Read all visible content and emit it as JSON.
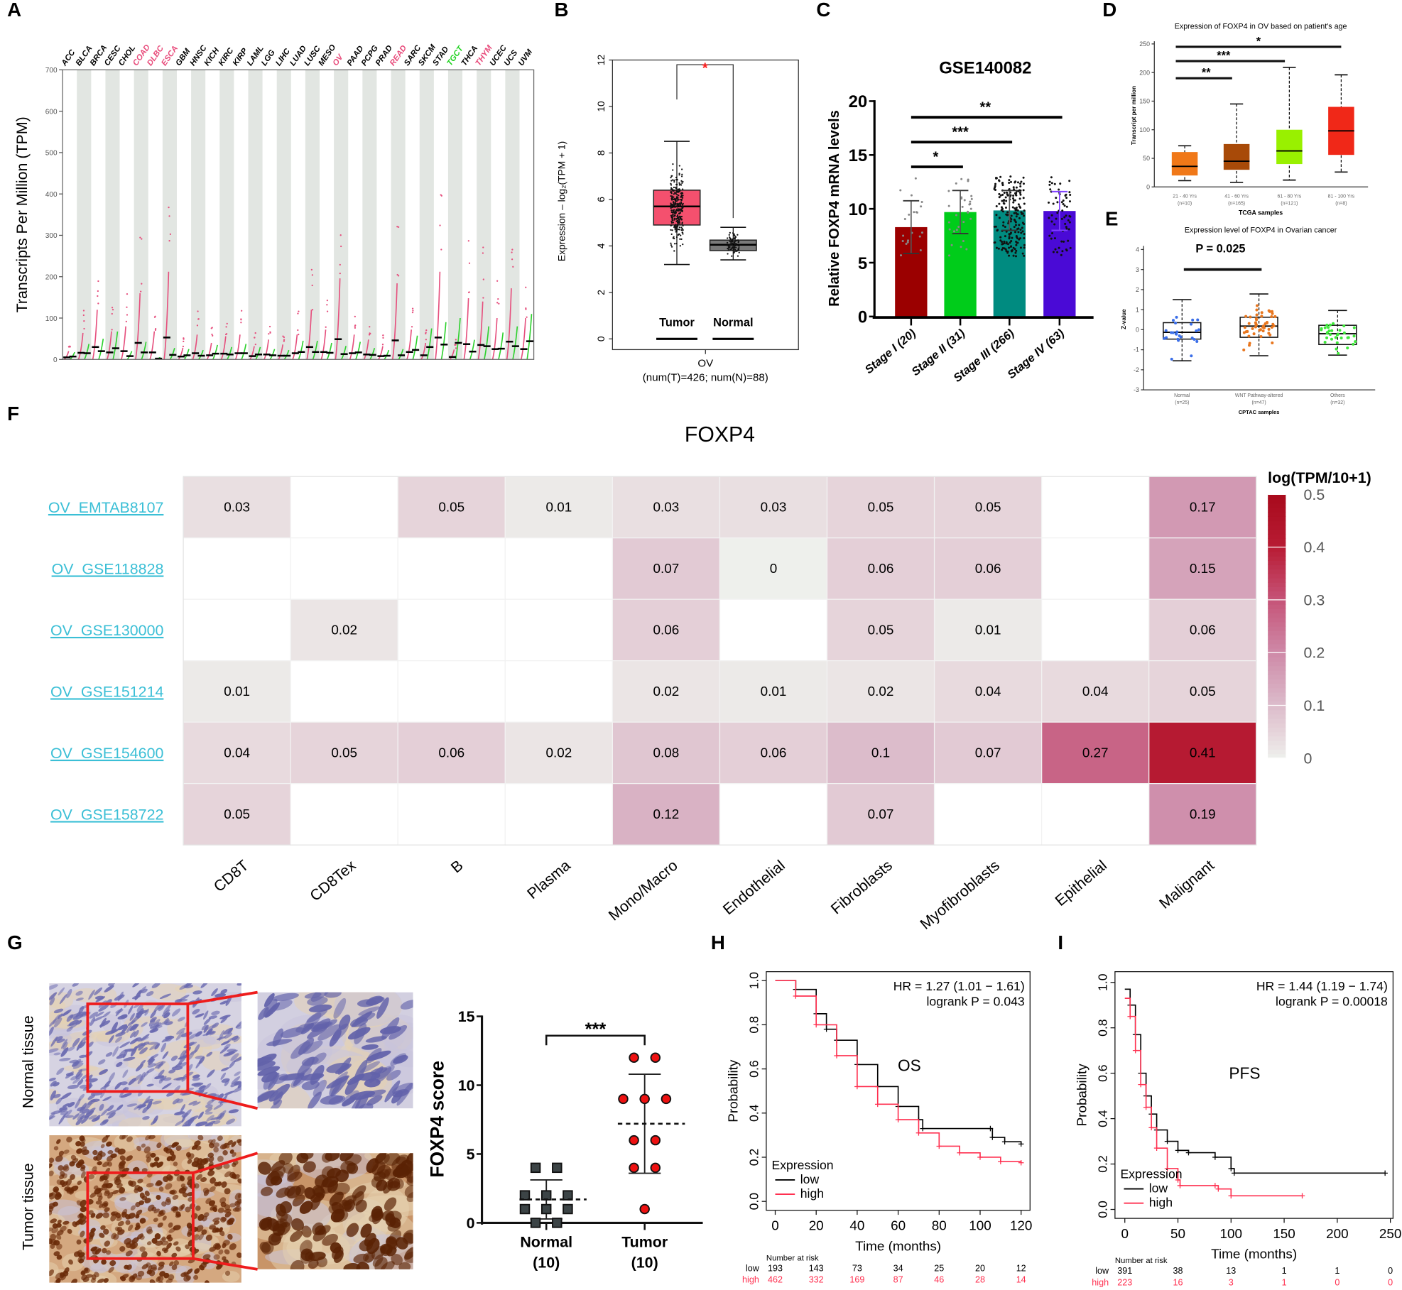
{
  "panel_labels": [
    "A",
    "B",
    "C",
    "D",
    "E",
    "F",
    "G",
    "H",
    "I"
  ],
  "chart_data": [
    {
      "panel": "A",
      "type": "scatter",
      "ylabel": "Transcripts Per Million (TPM)",
      "ylim": [
        0,
        700
      ],
      "yticks": [
        0,
        100,
        200,
        300,
        400,
        500,
        600,
        700
      ],
      "categories": [
        "ACC",
        "BLCA",
        "BRCA",
        "CESC",
        "CHOL",
        "COAD",
        "DLBC",
        "ESCA",
        "GBM",
        "HNSC",
        "KICH",
        "KIRC",
        "KIRP",
        "LAML",
        "LGG",
        "LIHC",
        "LUAD",
        "LUSC",
        "MESO",
        "OV",
        "PAAD",
        "PCPG",
        "PRAD",
        "READ",
        "SARC",
        "SKCM",
        "STAD",
        "TGCT",
        "THCA",
        "THYM",
        "UCEC",
        "UCS",
        "UVM"
      ],
      "label_colors": [
        "#000000",
        "#000000",
        "#000000",
        "#000000",
        "#000000",
        "#e84a7a",
        "#e84a7a",
        "#e84a7a",
        "#000000",
        "#000000",
        "#000000",
        "#000000",
        "#000000",
        "#000000",
        "#000000",
        "#000000",
        "#000000",
        "#000000",
        "#000000",
        "#e84a7a",
        "#000000",
        "#000000",
        "#000000",
        "#e84a7a",
        "#000000",
        "#000000",
        "#000000",
        "#1ed21e",
        "#000000",
        "#e84a7a",
        "#000000",
        "#000000",
        "#000000"
      ],
      "tumor_medians": [
        5,
        16,
        30,
        17,
        20,
        40,
        17,
        53,
        7,
        15,
        10,
        14,
        15,
        8,
        12,
        9,
        15,
        30,
        18,
        49,
        15,
        12,
        8,
        46,
        18,
        10,
        53,
        6,
        37,
        35,
        25,
        43,
        25
      ],
      "normal_medians": [
        7,
        15,
        20,
        27,
        8,
        17,
        2,
        11,
        10,
        9,
        14,
        12,
        15,
        12,
        10,
        9,
        18,
        18,
        16,
        13,
        17,
        11,
        9,
        10,
        23,
        30,
        36,
        40,
        19,
        32,
        26,
        32,
        44
      ],
      "tumor_color": "#e6507e",
      "normal_color": "#2ed12e",
      "grid": false
    },
    {
      "panel": "B",
      "type": "box",
      "ylabel": "Expression – log₂(TPM + 1)",
      "ylim": [
        0,
        12
      ],
      "yticks": [
        0,
        2,
        4,
        6,
        8,
        10,
        12
      ],
      "groups": [
        {
          "label": "Tumor",
          "q1": 4.9,
          "median": 5.7,
          "q3": 6.4,
          "min": 3.2,
          "max": 8.5,
          "color": "#f4506e"
        },
        {
          "label": "Normal",
          "q1": 3.8,
          "median": 4.05,
          "q3": 4.25,
          "min": 3.4,
          "max": 4.8,
          "color": "#7a7a7a"
        }
      ],
      "significance": "*",
      "significance_color": "#ff2020",
      "xlabel": "OV",
      "xsublabel": "(num(T)=426; num(N)=88)"
    },
    {
      "panel": "C",
      "type": "bar",
      "title": "GSE140082",
      "ylabel": "Relative FOXP4 mRNA levels",
      "ylim": [
        0,
        20
      ],
      "yticks": [
        0,
        5,
        10,
        15,
        20
      ],
      "categories": [
        "Stage I (20)",
        "Stage II (31)",
        "Stage III (266)",
        "Stage IV (63)"
      ],
      "values": [
        8.3,
        9.7,
        9.85,
        9.8
      ],
      "sd": [
        2.45,
        2.0,
        1.85,
        1.8
      ],
      "colors": [
        "#9b0000",
        "#00cc1a",
        "#008b80",
        "#4a0ad6"
      ],
      "comparisons": [
        {
          "from": 0,
          "to": 1,
          "label": "*"
        },
        {
          "from": 0,
          "to": 2,
          "label": "***"
        },
        {
          "from": 0,
          "to": 3,
          "label": "**"
        }
      ]
    },
    {
      "panel": "D",
      "type": "box",
      "title": "Expression of FOXP4 in OV based on patient's age",
      "ylabel": "Transcript per million",
      "xlabel": "TCGA samples",
      "ylim": [
        0,
        250
      ],
      "yticks": [
        0,
        50,
        100,
        150,
        200,
        250
      ],
      "groups": [
        {
          "label": "21 - 40 Yrs",
          "n": "(n=10)",
          "q1": 20,
          "median": 36,
          "q3": 61,
          "min": 11,
          "max": 72,
          "color": "#f07818"
        },
        {
          "label": "41 - 60 Yrs",
          "n": "(n=165)",
          "q1": 30,
          "median": 45,
          "q3": 75,
          "min": 8,
          "max": 145,
          "color": "#a84a08"
        },
        {
          "label": "61 - 80 Yrs",
          "n": "(n=121)",
          "q1": 40,
          "median": 63,
          "q3": 100,
          "min": 12,
          "max": 209,
          "color": "#99f000"
        },
        {
          "label": "81 - 100 Yrs",
          "n": "(n=8)",
          "q1": 56,
          "median": 98,
          "q3": 140,
          "min": 26,
          "max": 196,
          "color": "#f02818"
        }
      ],
      "comparisons": [
        {
          "from": 0,
          "to": 1,
          "label": "**"
        },
        {
          "from": 0,
          "to": 2,
          "label": "***"
        },
        {
          "from": 0,
          "to": 3,
          "label": "*"
        }
      ]
    },
    {
      "panel": "E",
      "type": "box",
      "title": "Expression level of FOXP4 in Ovarian cancer",
      "ylabel": "Z-value",
      "xlabel": "CPTAC samples",
      "ylim": [
        -3,
        4
      ],
      "yticks": [
        -3,
        -2,
        -1,
        0,
        1,
        2,
        3,
        4
      ],
      "groups": [
        {
          "label": "Normal",
          "n": "(n=25)",
          "count": 25,
          "q1": -0.47,
          "median": -0.13,
          "q3": 0.35,
          "min": -1.55,
          "max": 1.5,
          "color": "#3a6ee8"
        },
        {
          "label": "WNT Pathway-altered",
          "n": "(n=47)",
          "count": 47,
          "q1": -0.38,
          "median": 0.18,
          "q3": 0.62,
          "min": -1.3,
          "max": 1.78,
          "color": "#e8761e"
        },
        {
          "label": "Others",
          "n": "(n=32)",
          "count": 32,
          "q1": -0.74,
          "median": -0.2,
          "q3": 0.22,
          "min": -1.27,
          "max": 0.96,
          "color": "#3ee83a"
        }
      ],
      "annotation": {
        "label": "P = 0.025",
        "from": 0,
        "to": 1,
        "y": 3
      }
    },
    {
      "panel": "F",
      "type": "heatmap",
      "title": "FOXP4",
      "colorbar_title": "log(TPM/10+1)",
      "colorbar_ticks": [
        0.5,
        0.4,
        0.3,
        0.2,
        0.1,
        0
      ],
      "colorscale": [
        [
          0,
          "#eef0ec"
        ],
        [
          0.05,
          "#e6d4da"
        ],
        [
          0.1,
          "#dcbccb"
        ],
        [
          0.2,
          "#ce8aa8"
        ],
        [
          0.3,
          "#c65478"
        ],
        [
          0.4,
          "#b81c34"
        ],
        [
          0.5,
          "#a80a1c"
        ]
      ],
      "rows": [
        "OV_EMTAB8107",
        "OV_GSE118828",
        "OV_GSE130000",
        "OV_GSE151214",
        "OV_GSE154600",
        "OV_GSE158722"
      ],
      "columns": [
        "CD8T",
        "CD8Tex",
        "B",
        "Plasma",
        "Mono/Macro",
        "Endothelial",
        "Fibroblasts",
        "Myofibroblasts",
        "Epithelial",
        "Malignant"
      ],
      "values": [
        [
          0.03,
          null,
          0.05,
          0.01,
          0.03,
          0.03,
          0.05,
          0.05,
          null,
          0.17
        ],
        [
          null,
          null,
          null,
          null,
          0.07,
          0,
          0.06,
          0.06,
          null,
          0.15
        ],
        [
          null,
          0.02,
          null,
          null,
          0.06,
          null,
          0.05,
          0.01,
          null,
          0.06
        ],
        [
          0.01,
          null,
          null,
          null,
          0.02,
          0.01,
          0.02,
          0.04,
          0.04,
          0.05
        ],
        [
          0.04,
          0.05,
          0.06,
          0.02,
          0.08,
          0.06,
          0.1,
          0.07,
          0.27,
          0.41
        ],
        [
          0.05,
          null,
          null,
          null,
          0.12,
          null,
          0.07,
          null,
          null,
          0.19
        ]
      ],
      "row_label_color": "#3bbfd6"
    },
    {
      "panel": "G",
      "type": "scatter",
      "tissue_labels": [
        "Normal tissue",
        "Tumor tissue"
      ],
      "ylabel": "FOXP4 score",
      "ylim": [
        0,
        15
      ],
      "yticks": [
        0,
        5,
        10,
        15
      ],
      "significance": "***",
      "groups": [
        {
          "label": "Normal",
          "n": "(10)",
          "values": [
            4,
            4,
            2,
            2,
            2,
            1,
            1,
            1,
            0,
            0
          ],
          "mean": 1.7,
          "sd": 1.42,
          "marker": "square",
          "color": "#3c4446"
        },
        {
          "label": "Tumor",
          "n": "(10)",
          "values": [
            12,
            12,
            9,
            9,
            9,
            6,
            6,
            4,
            4,
            1
          ],
          "mean": 7.2,
          "sd": 3.6,
          "marker": "circle",
          "color": "#ee1111"
        }
      ]
    },
    {
      "panel": "H",
      "type": "line",
      "subtype": "kaplan-meier",
      "label": "OS",
      "hr_text": "HR = 1.27 (1.01 − 1.61)",
      "p_text": "logrank P = 0.043",
      "xlabel": "Time (months)",
      "ylabel": "Probability",
      "xlim": [
        0,
        120
      ],
      "xticks": [
        0,
        20,
        40,
        60,
        80,
        100,
        120
      ],
      "ylim": [
        0,
        1
      ],
      "yticks": [
        0.0,
        0.2,
        0.4,
        0.6,
        0.8,
        1.0
      ],
      "ytick_labels": [
        "0.0",
        "0.2",
        "0.4",
        "0.6",
        "0.8",
        "1.0"
      ],
      "legend_title": "Expression",
      "series": [
        {
          "name": "low",
          "color": "#000000",
          "x": [
            0,
            10,
            20,
            25,
            30,
            40,
            50,
            60,
            70,
            72,
            105,
            106,
            112,
            120
          ],
          "y": [
            1,
            0.96,
            0.85,
            0.78,
            0.73,
            0.62,
            0.52,
            0.43,
            0.37,
            0.33,
            0.33,
            0.29,
            0.27,
            0.26
          ]
        },
        {
          "name": "high",
          "color": "#ff3050",
          "x": [
            0,
            10,
            20,
            30,
            40,
            50,
            60,
            70,
            80,
            90,
            100,
            110,
            120
          ],
          "y": [
            1,
            0.93,
            0.8,
            0.66,
            0.52,
            0.44,
            0.37,
            0.31,
            0.25,
            0.22,
            0.2,
            0.18,
            0.175
          ]
        }
      ],
      "risk_table": {
        "title": "Number at risk",
        "rows": [
          {
            "name": "low",
            "color": "#000000",
            "values": [
              "193",
              "143",
              "73",
              "34",
              "25",
              "20",
              "12"
            ]
          },
          {
            "name": "high",
            "color": "#ff3050",
            "values": [
              "462",
              "332",
              "169",
              "87",
              "46",
              "28",
              "14"
            ]
          }
        ]
      }
    },
    {
      "panel": "I",
      "type": "line",
      "subtype": "kaplan-meier",
      "label": "PFS",
      "hr_text": "HR = 1.44 (1.19 − 1.74)",
      "p_text": "logrank P = 0.00018",
      "xlabel": "Time (months)",
      "ylabel": "Probability",
      "xlim": [
        0,
        250
      ],
      "xticks": [
        0,
        50,
        100,
        150,
        200,
        250
      ],
      "ylim": [
        0,
        1
      ],
      "yticks": [
        0.0,
        0.2,
        0.4,
        0.6,
        0.8,
        1.0
      ],
      "ytick_labels": [
        "0.0",
        "0.2",
        "0.4",
        "0.6",
        "0.8",
        "1.0"
      ],
      "legend_title": "Expression",
      "series": [
        {
          "name": "low",
          "color": "#000000",
          "x": [
            0,
            5,
            10,
            15,
            20,
            25,
            30,
            40,
            50,
            60,
            85,
            100,
            103,
            245
          ],
          "y": [
            0.97,
            0.9,
            0.77,
            0.6,
            0.5,
            0.42,
            0.35,
            0.3,
            0.26,
            0.25,
            0.23,
            0.18,
            0.16,
            0.16
          ]
        },
        {
          "name": "high",
          "color": "#ff3050",
          "x": [
            0,
            5,
            10,
            15,
            20,
            25,
            30,
            40,
            50,
            52,
            85,
            88,
            100,
            167
          ],
          "y": [
            0.93,
            0.85,
            0.7,
            0.55,
            0.45,
            0.36,
            0.27,
            0.18,
            0.13,
            0.105,
            0.105,
            0.09,
            0.06,
            0.06
          ]
        }
      ],
      "risk_table": {
        "title": "Number at risk",
        "rows": [
          {
            "name": "low",
            "color": "#000000",
            "values": [
              "391",
              "38",
              "13",
              "1",
              "1",
              "0"
            ]
          },
          {
            "name": "high",
            "color": "#ff3050",
            "values": [
              "223",
              "16",
              "3",
              "1",
              "0",
              "0"
            ]
          }
        ]
      }
    }
  ]
}
